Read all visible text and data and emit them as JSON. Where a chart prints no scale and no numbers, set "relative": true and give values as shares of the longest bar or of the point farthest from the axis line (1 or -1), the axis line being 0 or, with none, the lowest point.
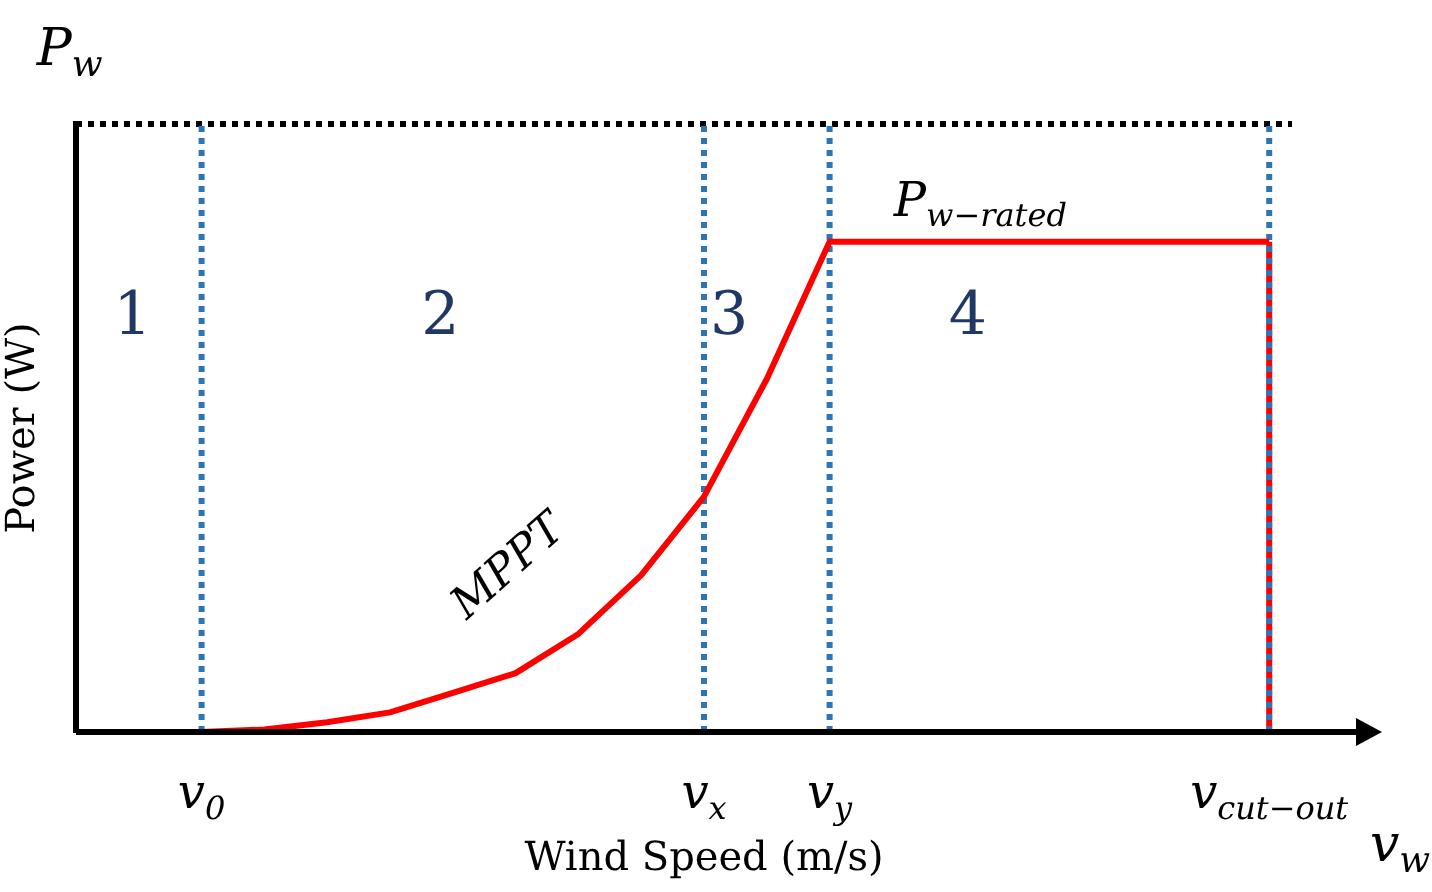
{
  "chart_data": {
    "type": "line",
    "relative": true,
    "xlabel": "Wind Speed (m/s)",
    "ylabel": "Power (W)",
    "categories": [
      null,
      null,
      "v$_{0}$",
      null,
      null,
      null,
      null,
      null,
      null,
      null,
      "v$_{x}$",
      null,
      "v$_{y}$",
      null,
      null,
      null,
      null,
      null,
      null,
      "v$_{cut−out}$",
      null
    ],
    "series": [
      {
        "color": "#ff0000",
        "values": [
          null,
          null,
          0,
          0.005,
          0.02,
          0.04,
          0.08,
          0.12,
          0.2,
          0.32,
          0.48,
          0.72,
          1,
          1,
          1,
          1,
          1,
          1,
          1,
          1,
          null
        ]
      }
    ],
    "ref_lines": [
      {
        "axis": "y",
        "value": 1.24,
        "color": "#000000",
        "line_style": "dotted"
      },
      {
        "axis": "x",
        "value": "v$_{cut−out}$",
        "color": "#ff0000",
        "line_style": "solid"
      },
      {
        "axis": "x",
        "value": "v$_{0}$",
        "color": "#2e75b6",
        "line_style": "dotted"
      },
      {
        "axis": "x",
        "value": "v$_{x}$",
        "color": "#2e75b6",
        "line_style": "dotted"
      },
      {
        "axis": "x",
        "value": "v$_{y}$",
        "color": "#2e75b6",
        "line_style": "dotted"
      },
      {
        "axis": "x",
        "value": "v$_{cut−out}$",
        "color": "#2e75b6",
        "line_style": "dotted"
      }
    ],
    "annotations": [
      "1",
      "2",
      "3",
      "4",
      "P$_{w−rated}$",
      "MPPT",
      "P$_{w}$",
      "v$_{w}$"
    ],
    "grid": false,
    "legend": false,
    "marker": "none",
    "line_style": "solid"
  }
}
